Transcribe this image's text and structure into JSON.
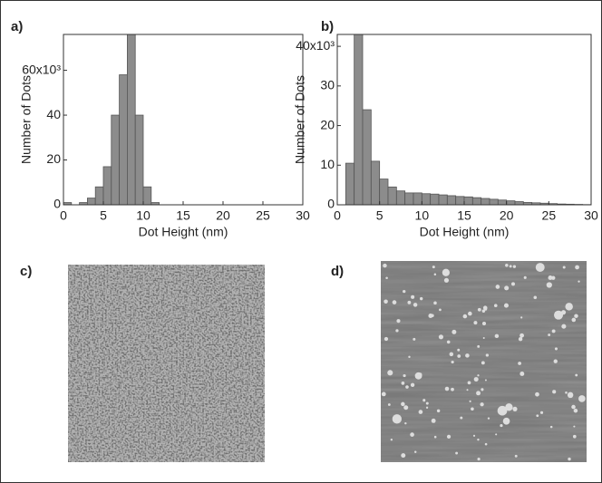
{
  "chart_data": [
    {
      "type": "histogram",
      "panel_label": "a)",
      "xlabel": "Dot Height (nm)",
      "ylabel": "Number of Dots",
      "color": "#8c8c8c",
      "bins": [
        0,
        1,
        2,
        3,
        4,
        5,
        6,
        7,
        8,
        9,
        10,
        11,
        12,
        13,
        14,
        15,
        16,
        17,
        18,
        19,
        20,
        21,
        22,
        23,
        24,
        25,
        26,
        27,
        28,
        29,
        30
      ],
      "values": [
        1,
        0,
        1,
        3,
        8,
        17,
        40,
        58,
        78,
        40,
        8,
        1,
        0,
        0,
        0,
        0,
        0,
        0,
        0,
        0,
        0,
        0,
        0,
        0,
        0,
        0,
        0,
        0,
        0,
        0
      ],
      "xlim": [
        0,
        30
      ],
      "xticks": [
        0,
        5,
        10,
        15,
        20,
        25,
        30
      ],
      "ylim": [
        0,
        76
      ],
      "yticks": [
        0,
        20,
        40,
        {
          "value": 60,
          "label": "60x10³"
        }
      ]
    },
    {
      "type": "histogram",
      "panel_label": "b)",
      "xlabel": "Dot Height (nm)",
      "ylabel": "Number of Dots",
      "color": "#8c8c8c",
      "bins": [
        0,
        1,
        2,
        3,
        4,
        5,
        6,
        7,
        8,
        9,
        10,
        11,
        12,
        13,
        14,
        15,
        16,
        17,
        18,
        19,
        20,
        21,
        22,
        23,
        24,
        25,
        26,
        27,
        28,
        29,
        30
      ],
      "values": [
        0,
        10.5,
        43,
        24,
        11,
        6.5,
        4.5,
        3.5,
        3,
        3,
        2.8,
        2.7,
        2.5,
        2.3,
        2.1,
        2,
        1.8,
        1.6,
        1.4,
        1.2,
        1,
        0.8,
        0.6,
        0.5,
        0.4,
        0.3,
        0.2,
        0.15,
        0.1,
        0.05
      ],
      "xlim": [
        0,
        30
      ],
      "xticks": [
        0,
        5,
        10,
        15,
        20,
        25,
        30
      ],
      "ylim": [
        0,
        43
      ],
      "yticks": [
        0,
        10,
        20,
        30,
        {
          "value": 40,
          "label": "40x10³"
        }
      ]
    }
  ],
  "images": [
    {
      "label": "c)"
    },
    {
      "label": "d)"
    }
  ]
}
